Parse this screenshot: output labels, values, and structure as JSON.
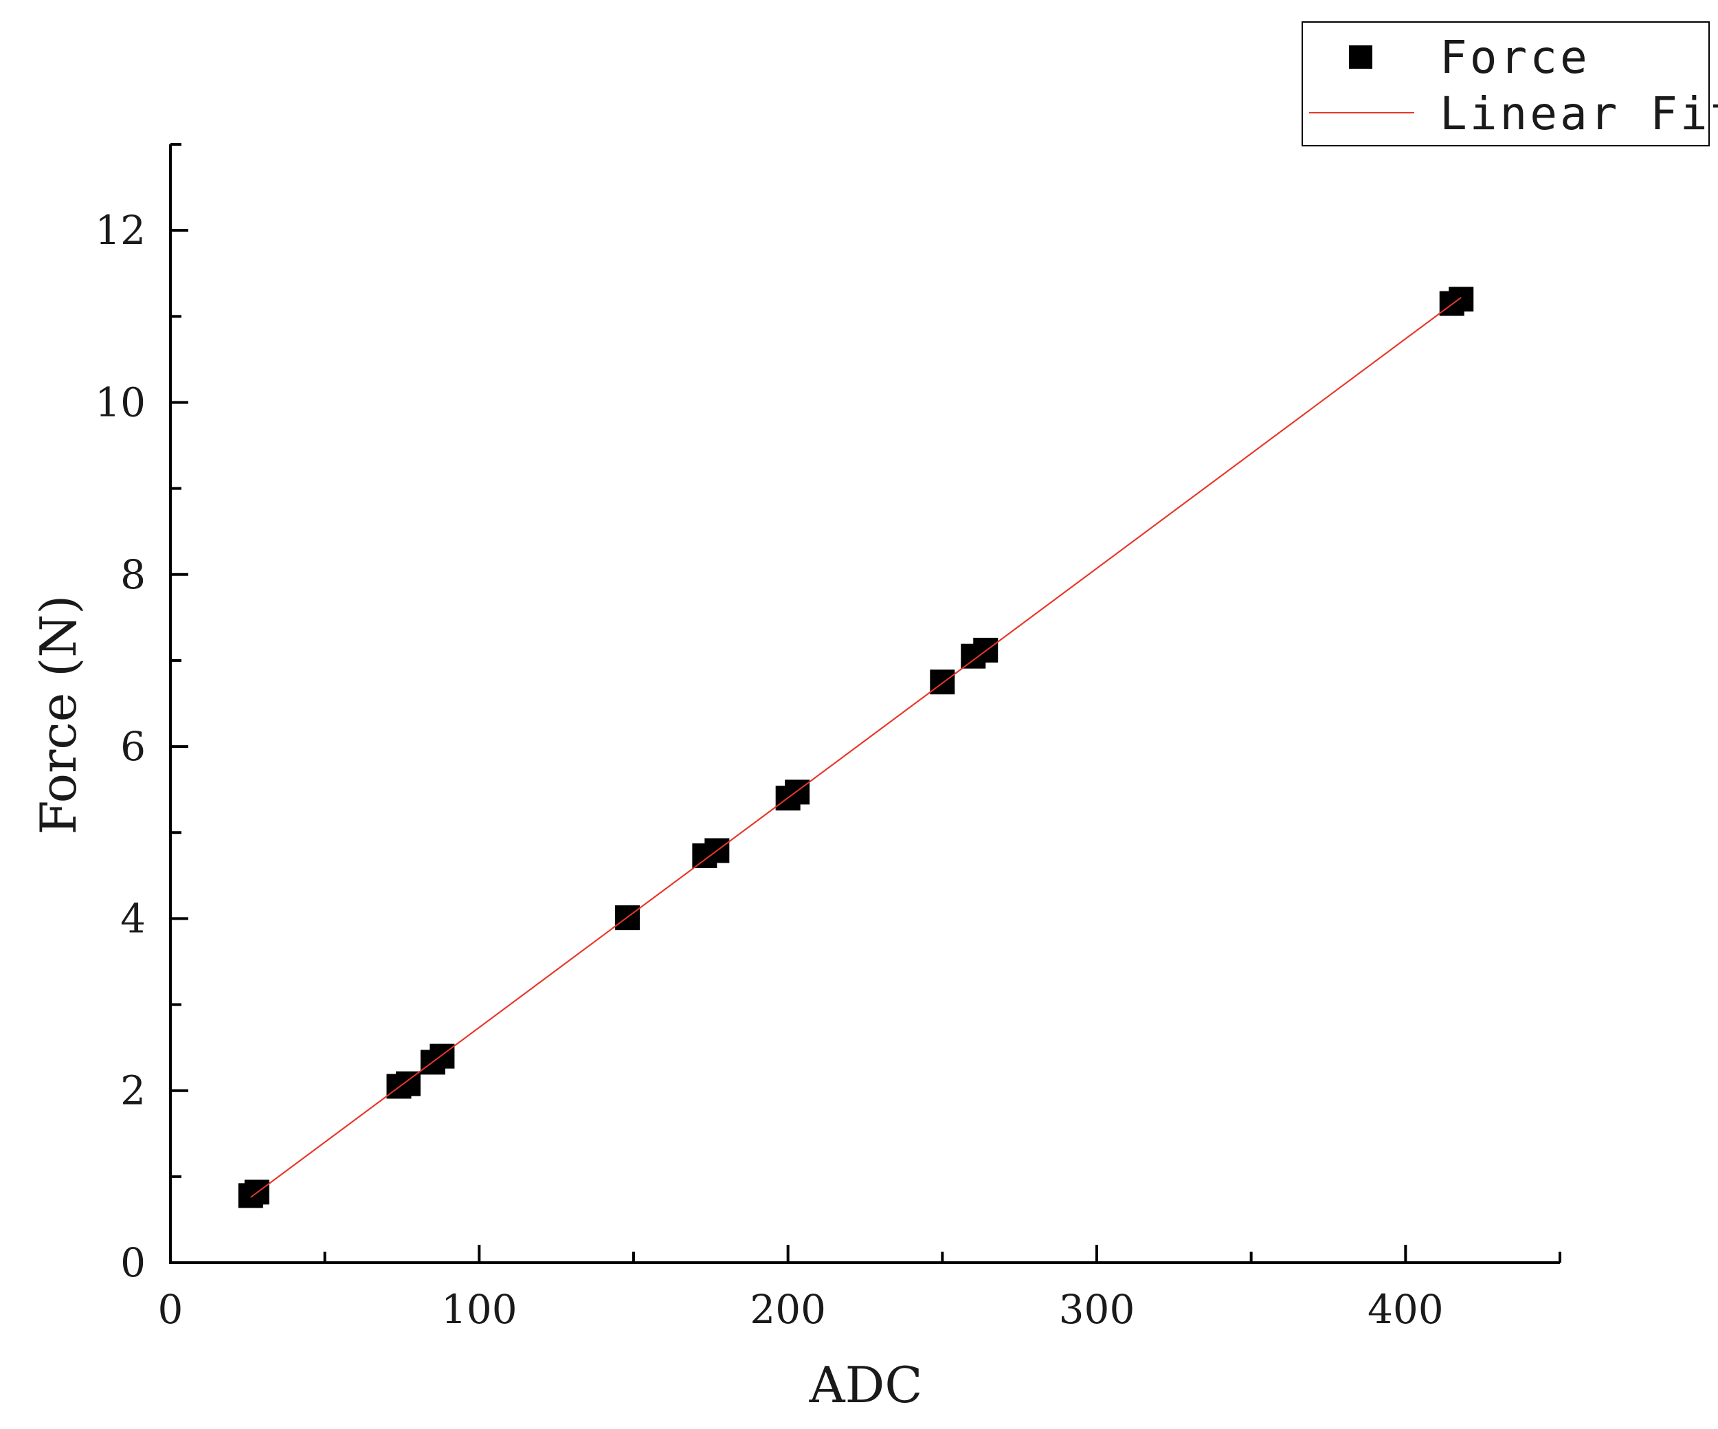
{
  "chart_data": {
    "type": "scatter",
    "xlabel": "ADC",
    "ylabel": "Force (N)",
    "xlim": [
      0,
      450
    ],
    "ylim": [
      0,
      13
    ],
    "x_ticks": [
      0,
      100,
      200,
      300,
      400
    ],
    "y_ticks": [
      0,
      2,
      4,
      6,
      8,
      10,
      12
    ],
    "x_minor_step": 50,
    "y_minor_step": 1,
    "grid": false,
    "legend_position": "top-right",
    "series": [
      {
        "name": "Force",
        "kind": "points",
        "marker": "square",
        "color": "#000000",
        "x": [
          26,
          28,
          74,
          77,
          85,
          88,
          148,
          173,
          177,
          200,
          203,
          250,
          260,
          264,
          415,
          418
        ],
        "y": [
          0.78,
          0.82,
          2.05,
          2.08,
          2.33,
          2.4,
          4.01,
          4.73,
          4.79,
          5.4,
          5.47,
          6.75,
          7.05,
          7.12,
          11.15,
          11.2
        ]
      },
      {
        "name": "Linear Fit",
        "kind": "line",
        "color": "#e8372a",
        "x": [
          26,
          418
        ],
        "y": [
          0.76,
          11.22
        ]
      }
    ]
  }
}
